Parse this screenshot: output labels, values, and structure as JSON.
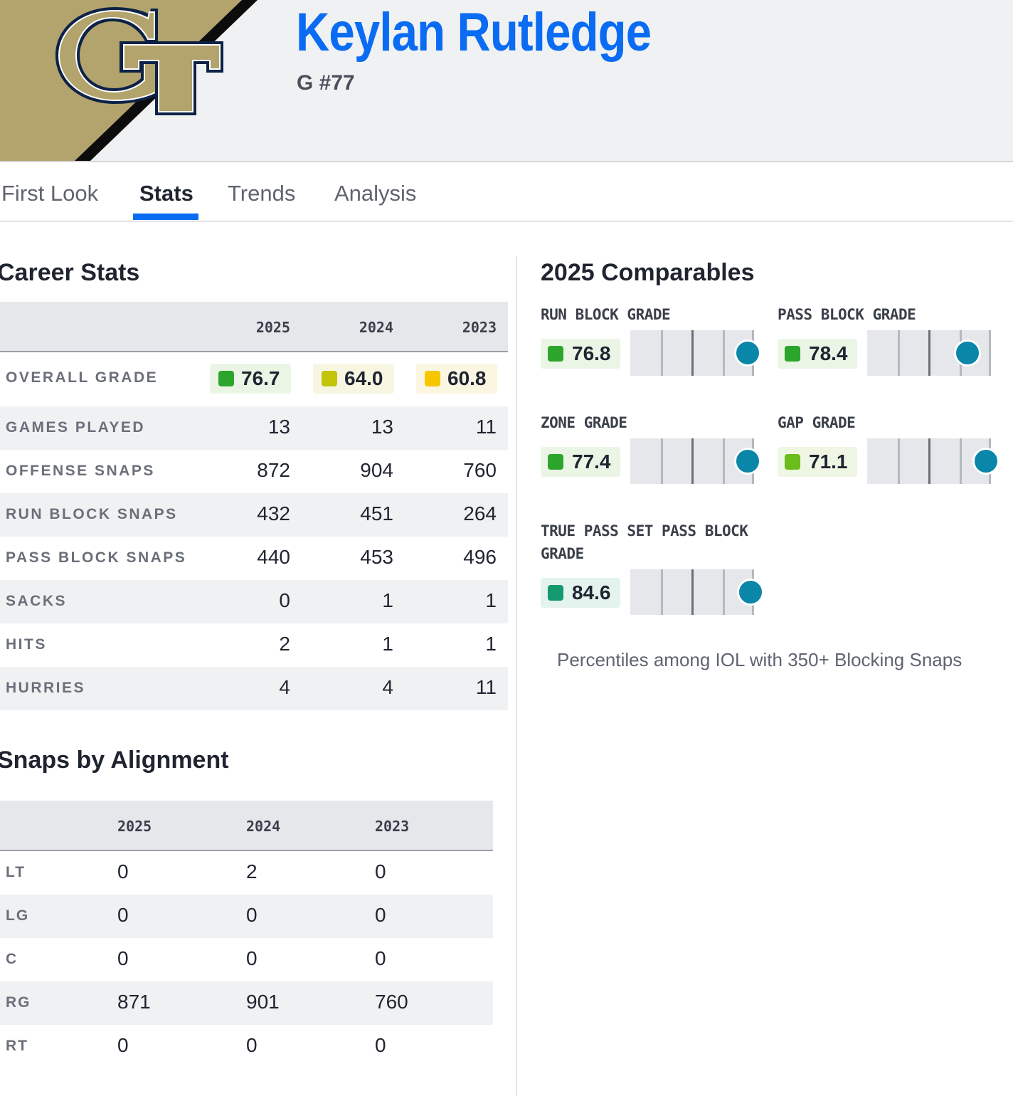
{
  "player": {
    "name": "Keylan Rutledge",
    "position": "G #77",
    "team_logo": "GT"
  },
  "tabs": [
    {
      "label": "First Look",
      "active": false
    },
    {
      "label": "Stats",
      "active": true
    },
    {
      "label": "Trends",
      "active": false
    },
    {
      "label": "Analysis",
      "active": false
    }
  ],
  "career_stats": {
    "title": "Career Stats",
    "years": [
      "2025",
      "2024",
      "2023"
    ],
    "overall_grade": {
      "label": "OVERALL GRADE",
      "values": [
        {
          "value": "76.7",
          "color": "#2ca52c",
          "bg": "#eaf5e6"
        },
        {
          "value": "64.0",
          "color": "#c2c40a",
          "bg": "#f6f6e2"
        },
        {
          "value": "60.8",
          "color": "#f7c600",
          "bg": "#fbf6e2"
        }
      ]
    },
    "rows": [
      {
        "label": "GAMES PLAYED",
        "values": [
          "13",
          "13",
          "11"
        ]
      },
      {
        "label": "OFFENSE SNAPS",
        "values": [
          "872",
          "904",
          "760"
        ]
      },
      {
        "label": "RUN BLOCK SNAPS",
        "values": [
          "432",
          "451",
          "264"
        ]
      },
      {
        "label": "PASS BLOCK SNAPS",
        "values": [
          "440",
          "453",
          "496"
        ]
      },
      {
        "label": "SACKS",
        "values": [
          "0",
          "1",
          "1"
        ]
      },
      {
        "label": "HITS",
        "values": [
          "2",
          "1",
          "1"
        ]
      },
      {
        "label": "HURRIES",
        "values": [
          "4",
          "4",
          "11"
        ]
      }
    ]
  },
  "alignment": {
    "title": "Snaps by Alignment",
    "years": [
      "2025",
      "2024",
      "2023"
    ],
    "rows": [
      {
        "label": "LT",
        "values": [
          "0",
          "2",
          "0"
        ]
      },
      {
        "label": "LG",
        "values": [
          "0",
          "0",
          "0"
        ]
      },
      {
        "label": "C",
        "values": [
          "0",
          "0",
          "0"
        ]
      },
      {
        "label": "RG",
        "values": [
          "871",
          "901",
          "760"
        ]
      },
      {
        "label": "RT",
        "values": [
          "0",
          "0",
          "0"
        ]
      }
    ]
  },
  "comparables": {
    "title": "2025 Comparables",
    "items": [
      {
        "label": "RUN BLOCK GRADE",
        "value": "76.8",
        "color": "#2ca52c",
        "bg": "#eaf5e6",
        "percentile": 0.95
      },
      {
        "label": "PASS BLOCK GRADE",
        "value": "78.4",
        "color": "#2ca52c",
        "bg": "#eaf5e6",
        "percentile": 0.81
      },
      {
        "label": "ZONE GRADE",
        "value": "77.4",
        "color": "#2ca52c",
        "bg": "#eaf5e6",
        "percentile": 0.95
      },
      {
        "label": "GAP GRADE",
        "value": "71.1",
        "color": "#6abd1a",
        "bg": "#eff6e4",
        "percentile": 0.96
      },
      {
        "label": "TRUE PASS SET PASS BLOCK GRADE",
        "value": "84.6",
        "color": "#139a6e",
        "bg": "#e4f3ee",
        "percentile": 0.97
      }
    ],
    "footnote": "Percentiles among IOL with 350+ Blocking Snaps"
  }
}
